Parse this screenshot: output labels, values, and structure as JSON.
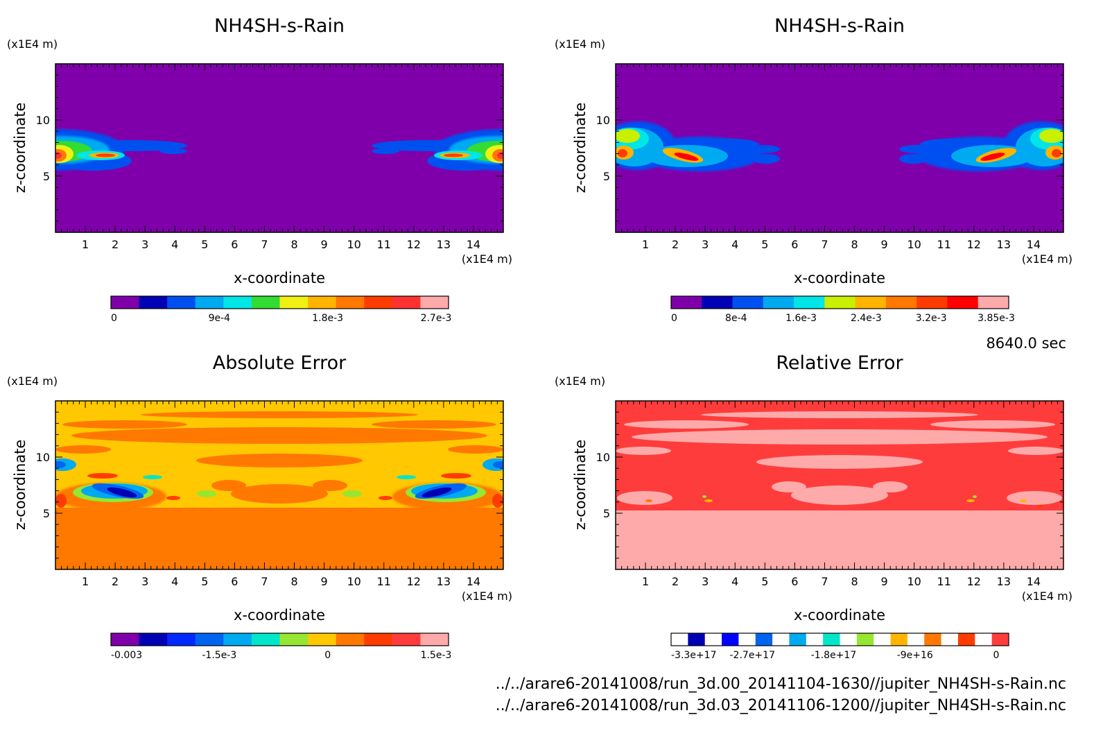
{
  "footer": {
    "time": "8640.0 sec",
    "files": [
      "../../arare6-20141008/run_3d.00_20141104-1630//jupiter_NH4SH-s-Rain.nc",
      "../../arare6-20141008/run_3d.03_20141106-1200//jupiter_NH4SH-s-Rain.nc"
    ]
  },
  "chart_data": [
    {
      "type": "heatmap",
      "title": "NH4SH-s-Rain",
      "xlabel": "x-coordinate",
      "ylabel": "z-coordinate",
      "x_unit": "(x1E4 m)",
      "y_unit": "(x1E4 m)",
      "xlim": [
        0,
        15
      ],
      "ylim": [
        0,
        15
      ],
      "xticks": [
        "1",
        "2",
        "3",
        "4",
        "5",
        "6",
        "7",
        "8",
        "9",
        "10",
        "11",
        "12",
        "13",
        "14"
      ],
      "yticks": [
        "5",
        "10"
      ],
      "background_color": "#7f00aa",
      "colorbar": {
        "colors": [
          "#7f00aa",
          "#0000b4",
          "#0050f0",
          "#00aaf0",
          "#00e6e6",
          "#32dc32",
          "#f0f014",
          "#ffb400",
          "#ff7800",
          "#ff3c00",
          "#ff3232",
          "#ffaaaa"
        ],
        "tick_labels": [
          "0",
          "9e-4",
          "1.8e-3",
          "2.7e-3"
        ]
      },
      "features": [
        {
          "value_level": "cloud",
          "x_range": [
            0,
            4.2
          ],
          "z_range": [
            5.5,
            8.5
          ]
        },
        {
          "value_level": "cloud",
          "x_range": [
            10.8,
            15
          ],
          "z_range": [
            5.5,
            8.5
          ]
        }
      ]
    },
    {
      "type": "heatmap",
      "title": "NH4SH-s-Rain",
      "xlabel": "x-coordinate",
      "ylabel": "z-coordinate",
      "x_unit": "(x1E4 m)",
      "y_unit": "(x1E4 m)",
      "xlim": [
        0,
        15
      ],
      "ylim": [
        0,
        15
      ],
      "xticks": [
        "1",
        "2",
        "3",
        "4",
        "5",
        "6",
        "7",
        "8",
        "9",
        "10",
        "11",
        "12",
        "13",
        "14"
      ],
      "yticks": [
        "5",
        "10"
      ],
      "background_color": "#7f00aa",
      "colorbar": {
        "colors": [
          "#7f00aa",
          "#0000b4",
          "#0050f0",
          "#00aaf0",
          "#00e6e6",
          "#c8f000",
          "#ffb400",
          "#ff7800",
          "#ff3c00",
          "#ff0000",
          "#ffaaaa"
        ],
        "tick_labels": [
          "0",
          "8e-4",
          "1.6e-3",
          "2.4e-3",
          "3.2e-3",
          "3.85e-3"
        ]
      },
      "features": [
        {
          "value_level": "cloud",
          "x_range": [
            0,
            5.4
          ],
          "z_range": [
            5.3,
            9.5
          ]
        },
        {
          "value_level": "cloud",
          "x_range": [
            9.6,
            15
          ],
          "z_range": [
            5.3,
            9.5
          ]
        }
      ]
    },
    {
      "type": "heatmap",
      "title": "Absolute Error",
      "xlabel": "x-coordinate",
      "ylabel": "z-coordinate",
      "x_unit": "(x1E4 m)",
      "y_unit": "(x1E4 m)",
      "xlim": [
        0,
        15
      ],
      "ylim": [
        0,
        15
      ],
      "xticks": [
        "1",
        "2",
        "3",
        "4",
        "5",
        "6",
        "7",
        "8",
        "9",
        "10",
        "11",
        "12",
        "13",
        "14"
      ],
      "yticks": [
        "5",
        "10"
      ],
      "background_color": "#ffc800",
      "colorbar": {
        "colors": [
          "#7f00aa",
          "#0000b4",
          "#0028ff",
          "#0064f0",
          "#00aaf0",
          "#00e6c8",
          "#96e632",
          "#ffc800",
          "#ff7800",
          "#ff3c00",
          "#ff3c3c",
          "#ffaaaa"
        ],
        "tick_labels": [
          "-0.003",
          "-1.5e-3",
          "0",
          "1.5e-3"
        ]
      },
      "features": [
        {
          "value_level": "0",
          "x_range": [
            0,
            15
          ],
          "z_range": [
            0,
            5.5
          ]
        },
        {
          "value_level": "negative",
          "x_range": [
            0.7,
            3.2
          ],
          "z_range": [
            5.8,
            7.5
          ]
        },
        {
          "value_level": "negative",
          "x_range": [
            11.8,
            14.3
          ],
          "z_range": [
            5.8,
            7.5
          ]
        }
      ]
    },
    {
      "type": "heatmap",
      "title": "Relative Error",
      "xlabel": "x-coordinate",
      "ylabel": "z-coordinate",
      "x_unit": "(x1E4 m)",
      "y_unit": "(x1E4 m)",
      "xlim": [
        0,
        15
      ],
      "ylim": [
        0,
        15
      ],
      "xticks": [
        "1",
        "2",
        "3",
        "4",
        "5",
        "6",
        "7",
        "8",
        "9",
        "10",
        "11",
        "12",
        "13",
        "14"
      ],
      "yticks": [
        "5",
        "10"
      ],
      "background_color": "#ff3c3c",
      "colorbar": {
        "colors": [
          "#ffffff",
          "#0000b4",
          "#ffffff",
          "#0000ff",
          "#ffffff",
          "#0064f0",
          "#ffffff",
          "#00aaf0",
          "#ffffff",
          "#00e6c8",
          "#ffffff",
          "#96e632",
          "#ffffff",
          "#ffb400",
          "#ffffff",
          "#ff7800",
          "#ffffff",
          "#ff3c00",
          "#ffffff",
          "#ff3c3c"
        ],
        "tick_labels": [
          "-3.3e+17",
          "-2.7e+17",
          "-1.8e+17",
          "-9e+16",
          "0"
        ]
      },
      "features": [
        {
          "value_level": "0",
          "x_range": [
            0,
            15
          ],
          "z_range": [
            0,
            5.5
          ]
        }
      ]
    }
  ]
}
